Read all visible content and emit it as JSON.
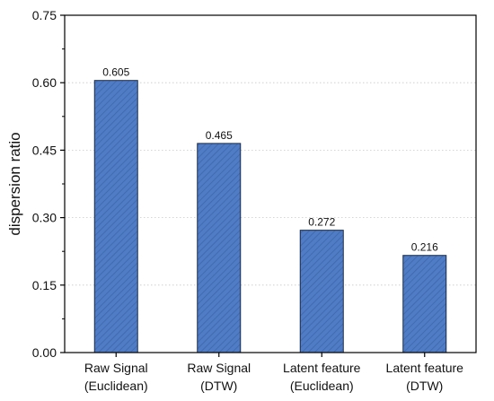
{
  "chart_data": {
    "type": "bar",
    "title": "",
    "ylabel": "dispersion ratio",
    "xlabel": "",
    "categories": [
      [
        "Raw Signal",
        "(Euclidean)"
      ],
      [
        "Raw Signal",
        "(DTW)"
      ],
      [
        "Latent feature",
        "(Euclidean)"
      ],
      [
        "Latent feature",
        "(DTW)"
      ]
    ],
    "values": [
      0.605,
      0.465,
      0.272,
      0.216
    ],
    "data_labels": [
      "0.605",
      "0.465",
      "0.272",
      "0.216"
    ],
    "yticks": [
      "0.00",
      "0.15",
      "0.30",
      "0.45",
      "0.60",
      "0.75"
    ],
    "ytick_values": [
      0,
      0.15,
      0.3,
      0.45,
      0.6,
      0.75
    ],
    "ylim": [
      0,
      0.75
    ],
    "grid": "horizontal dotted",
    "legend": "none",
    "colors": {
      "bar_fill": "#4f7cc4",
      "bar_hatch": "#3d67ad",
      "bar_edge": "#1a2a4a"
    }
  }
}
